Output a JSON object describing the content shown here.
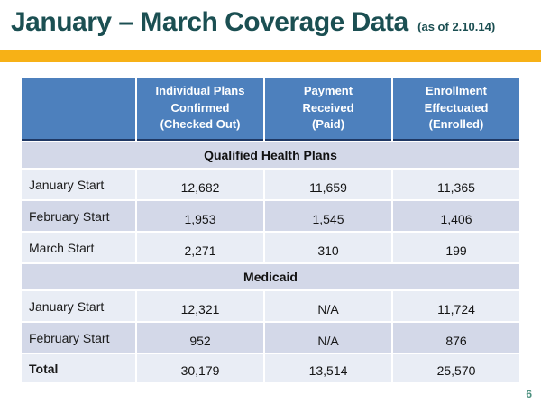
{
  "slide": {
    "title": "January – March Coverage Data",
    "subtitle": "(as of 2.10.14)",
    "page_number": "6",
    "colors": {
      "title_teal": "#1B4F52",
      "gold_bar": "#F7B116",
      "header_blue": "#4D80BD",
      "header_border_navy": "#1F3864",
      "row_shade_lavender": "#D3D8E8",
      "row_light": "#E9EDF5",
      "page_number_teal": "#4E9180"
    }
  },
  "table": {
    "columns": [
      "Individual Plans\nConfirmed\n(Checked Out)",
      "Payment\nReceived\n(Paid)",
      "Enrollment\nEffectuated\n(Enrolled)"
    ],
    "sections": [
      {
        "label": "Qualified Health Plans",
        "rows": [
          {
            "label": "January Start",
            "values": [
              "12,682",
              "11,659",
              "11,365"
            ]
          },
          {
            "label": "February Start",
            "values": [
              "1,953",
              "1,545",
              "1,406"
            ]
          },
          {
            "label": "March Start",
            "values": [
              "2,271",
              "310",
              "199"
            ]
          }
        ]
      },
      {
        "label": "Medicaid",
        "rows": [
          {
            "label": "January Start",
            "values": [
              "12,321",
              "N/A",
              "11,724"
            ]
          },
          {
            "label": "February Start",
            "values": [
              "952",
              "N/A",
              "876"
            ]
          }
        ]
      }
    ],
    "total_row": {
      "label": "Total",
      "values": [
        "30,179",
        "13,514",
        "25,570"
      ]
    }
  }
}
